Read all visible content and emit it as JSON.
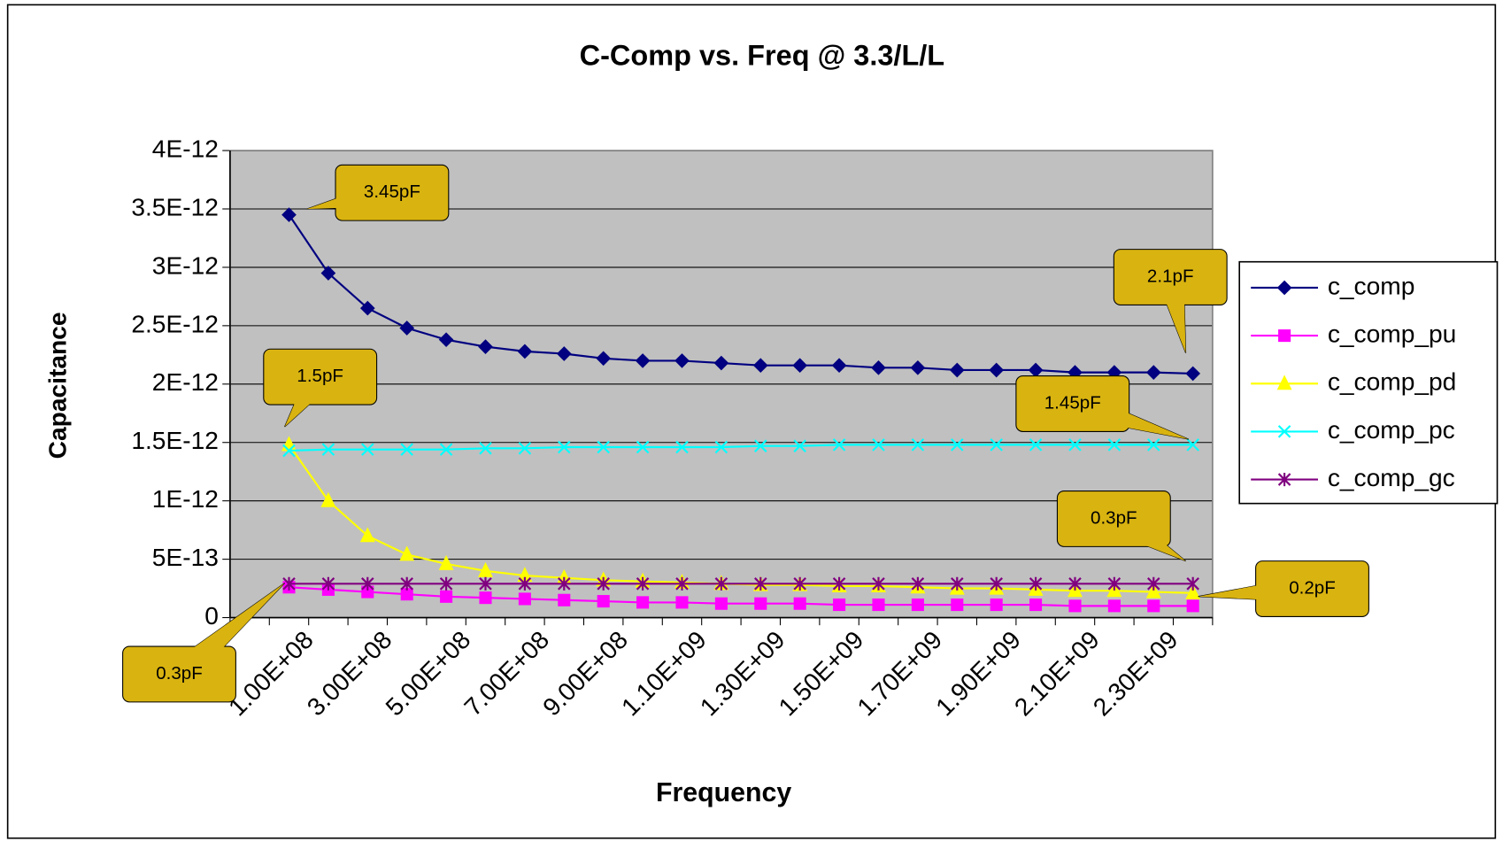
{
  "chart_data": {
    "type": "line",
    "title": "C-Comp vs. Freq @ 3.3/L/L",
    "xlabel": "Frequency",
    "ylabel": "Capacitance",
    "categories": [
      null,
      "1.00E+08",
      null,
      "3.00E+08",
      null,
      "5.00E+08",
      null,
      "7.00E+08",
      null,
      "9.00E+08",
      null,
      "1.10E+09",
      null,
      "1.30E+09",
      null,
      "1.50E+09",
      null,
      "1.70E+09",
      null,
      "1.90E+09",
      null,
      "2.10E+09",
      null,
      "2.30E+09",
      null
    ],
    "ylim": [
      0,
      4e-12
    ],
    "yticks": [
      0,
      {
        "value": 5e-13,
        "label": "5E-13"
      },
      {
        "value": 1e-12,
        "label": "1E-12"
      },
      {
        "value": 1.5e-12,
        "label": "1.5E-12"
      },
      {
        "value": 2e-12,
        "label": "2E-12"
      },
      {
        "value": 2.5e-12,
        "label": "2.5E-12"
      },
      {
        "value": 3e-12,
        "label": "3E-12"
      },
      {
        "value": 3.5e-12,
        "label": "3.5E-12"
      },
      {
        "value": 4e-12,
        "label": "4E-12"
      }
    ],
    "grid": true,
    "legend": "right",
    "series": [
      {
        "name": "c_comp",
        "color": "#000080",
        "marker": "diamond",
        "values": [
          null,
          3.45e-12,
          2.95e-12,
          2.65e-12,
          2.48e-12,
          2.38e-12,
          2.32e-12,
          2.28e-12,
          2.26e-12,
          2.22e-12,
          2.2e-12,
          2.2e-12,
          2.18e-12,
          2.16e-12,
          2.16e-12,
          2.16e-12,
          2.14e-12,
          2.14e-12,
          2.12e-12,
          2.12e-12,
          2.12e-12,
          2.1e-12,
          2.1e-12,
          2.1e-12,
          2.09e-12
        ]
      },
      {
        "name": "c_comp_pu",
        "color": "#ff00ff",
        "marker": "square",
        "values": [
          null,
          2.6e-13,
          2.4e-13,
          2.2e-13,
          2e-13,
          1.8e-13,
          1.7e-13,
          1.6e-13,
          1.5e-13,
          1.4e-13,
          1.3e-13,
          1.3e-13,
          1.2e-13,
          1.2e-13,
          1.2e-13,
          1.1e-13,
          1.1e-13,
          1.1e-13,
          1.1e-13,
          1.1e-13,
          1.1e-13,
          1e-13,
          1e-13,
          1e-13,
          1e-13
        ]
      },
      {
        "name": "c_comp_pd",
        "color": "#ffff00",
        "marker": "triangle",
        "values": [
          null,
          1.48e-12,
          1e-12,
          7e-13,
          5.4e-13,
          4.6e-13,
          4e-13,
          3.6e-13,
          3.4e-13,
          3.2e-13,
          3.1e-13,
          3e-13,
          2.9e-13,
          2.8e-13,
          2.8e-13,
          2.7e-13,
          2.7e-13,
          2.6e-13,
          2.5e-13,
          2.5e-13,
          2.4e-13,
          2.3e-13,
          2.3e-13,
          2.2e-13,
          2.1e-13
        ]
      },
      {
        "name": "c_comp_pc",
        "color": "#00ffff",
        "marker": "x",
        "values": [
          null,
          1.43e-12,
          1.44e-12,
          1.44e-12,
          1.44e-12,
          1.44e-12,
          1.45e-12,
          1.45e-12,
          1.46e-12,
          1.46e-12,
          1.46e-12,
          1.46e-12,
          1.46e-12,
          1.47e-12,
          1.47e-12,
          1.48e-12,
          1.48e-12,
          1.48e-12,
          1.48e-12,
          1.48e-12,
          1.48e-12,
          1.48e-12,
          1.48e-12,
          1.48e-12,
          1.48e-12
        ]
      },
      {
        "name": "c_comp_gc",
        "color": "#800080",
        "marker": "star",
        "values": [
          null,
          2.9e-13,
          2.9e-13,
          2.9e-13,
          2.9e-13,
          2.9e-13,
          2.9e-13,
          2.9e-13,
          2.9e-13,
          2.9e-13,
          2.9e-13,
          2.9e-13,
          2.9e-13,
          2.9e-13,
          2.9e-13,
          2.9e-13,
          2.9e-13,
          2.9e-13,
          2.9e-13,
          2.9e-13,
          2.9e-13,
          2.9e-13,
          2.9e-13,
          2.9e-13,
          2.9e-13
        ]
      }
    ],
    "annotations": [
      "3.45pF",
      "2.1pF",
      "1.5pF",
      "1.45pF",
      "0.3pF",
      "0.2pF",
      "0.3pF"
    ]
  }
}
